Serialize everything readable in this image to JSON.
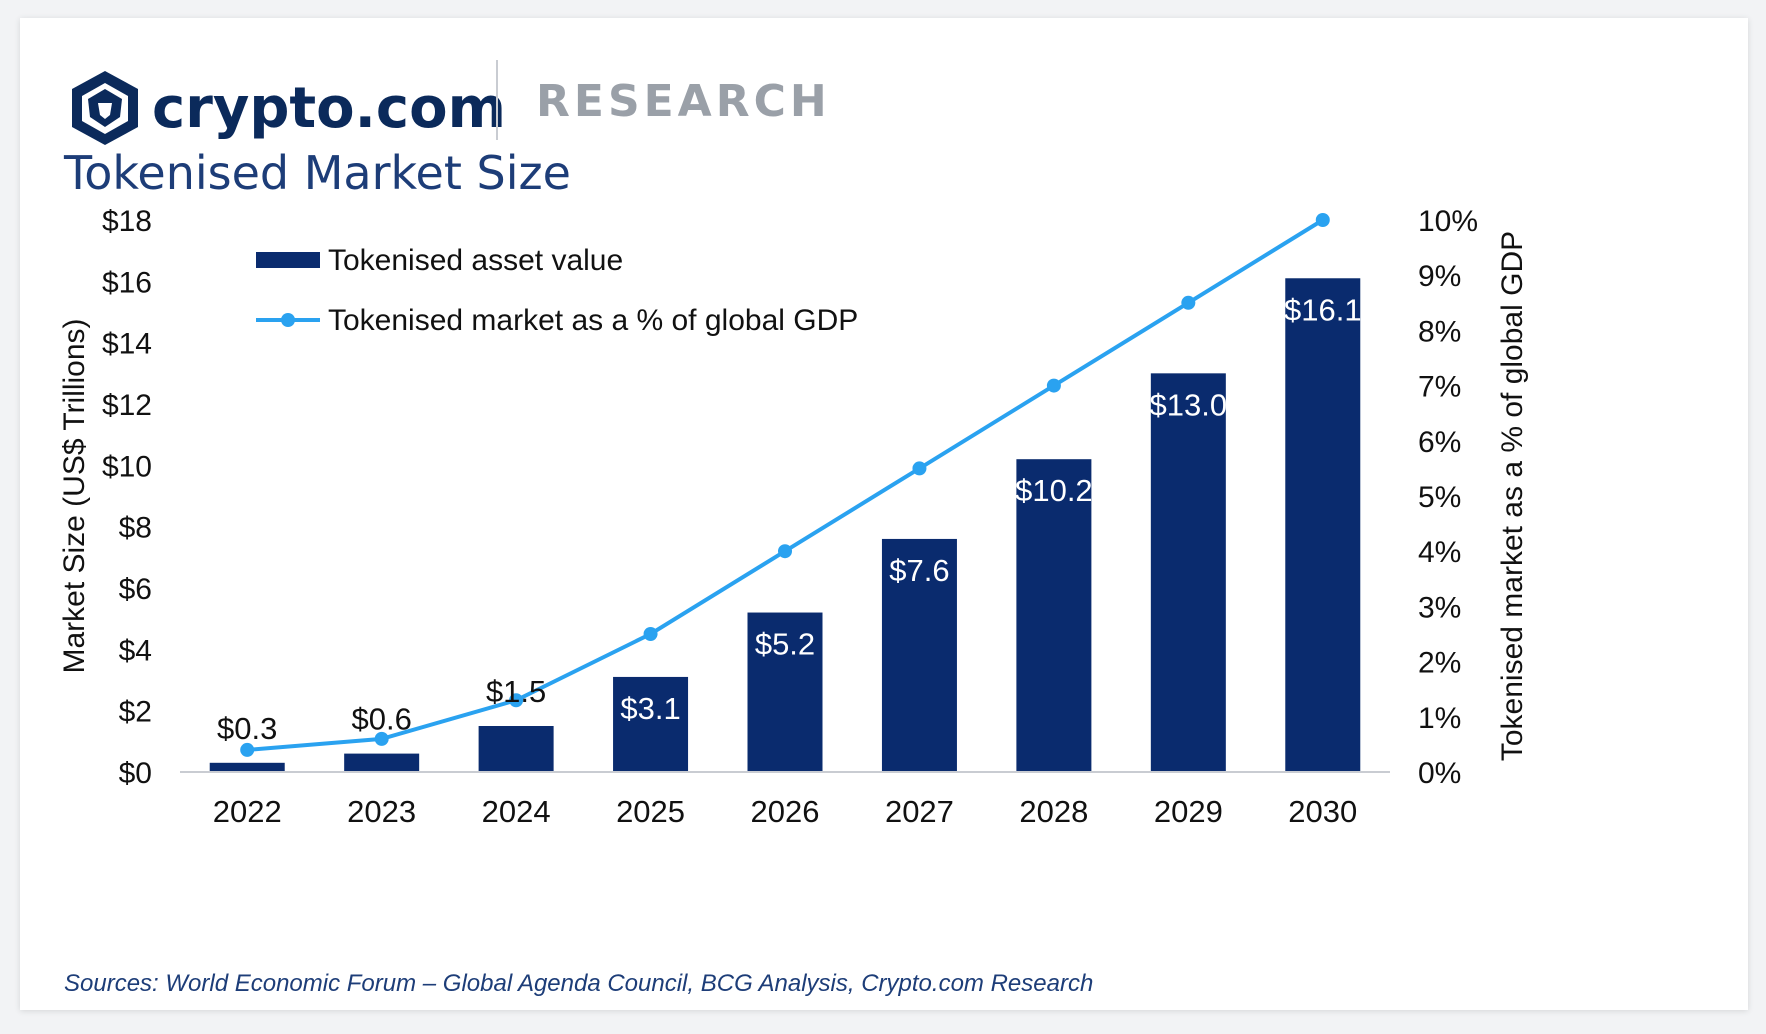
{
  "brand": {
    "name": "crypto.com",
    "section": "RESEARCH",
    "logo": "crypto-com-lion-shield-icon",
    "colors": {
      "navy": "#0b2a5b",
      "grey": "#9aa0a8"
    }
  },
  "chart_data": {
    "type": "bar",
    "title": "Tokenised Market Size",
    "categories": [
      "2022",
      "2023",
      "2024",
      "2025",
      "2026",
      "2027",
      "2028",
      "2029",
      "2030"
    ],
    "series": [
      {
        "name": "Tokenised asset value",
        "type": "bar",
        "axis": "left",
        "color": "#0a2b6e",
        "values": [
          0.3,
          0.6,
          1.5,
          3.1,
          5.2,
          7.6,
          10.2,
          13.0,
          16.1
        ],
        "labels": [
          "$0.3",
          "$0.6",
          "$1.5",
          "$3.1",
          "$5.2",
          "$7.6",
          "$10.2",
          "$13.0",
          "$16.1"
        ]
      },
      {
        "name": "Tokenised market as a % of global GDP",
        "type": "line",
        "axis": "right",
        "color": "#2aa2f0",
        "values": [
          0.4,
          0.6,
          1.3,
          2.5,
          4.0,
          5.5,
          7.0,
          8.5,
          10.0
        ]
      }
    ],
    "y_left": {
      "label": "Market Size (US$ Trillions)",
      "range": [
        0,
        18
      ],
      "ticks": [
        "$0",
        "$2",
        "$4",
        "$6",
        "$8",
        "$10",
        "$12",
        "$14",
        "$16",
        "$18"
      ]
    },
    "y_right": {
      "label": "Tokenised market as a % of global GDP",
      "range": [
        0,
        10
      ],
      "ticks": [
        "0%",
        "1%",
        "2%",
        "3%",
        "4%",
        "5%",
        "6%",
        "7%",
        "8%",
        "9%",
        "10%"
      ]
    },
    "grid": false,
    "legend_position": "top-left",
    "source": "Sources: World Economic Forum – Global Agenda Council, BCG Analysis, Crypto.com Research"
  }
}
